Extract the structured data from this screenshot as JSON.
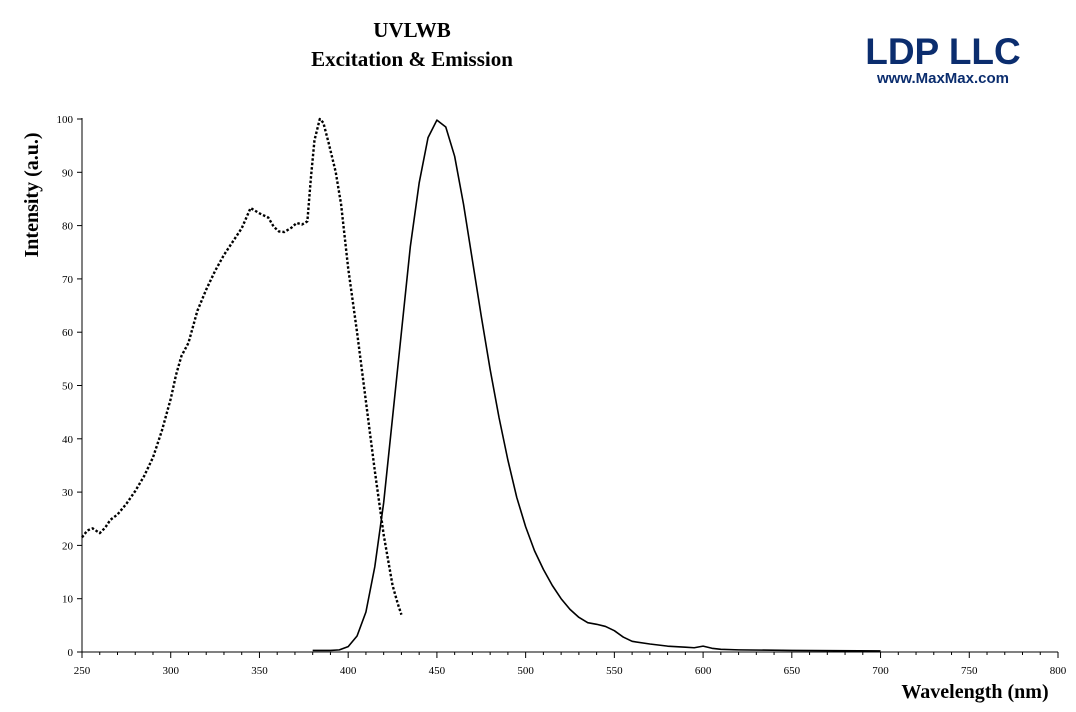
{
  "header": {
    "title": "UVLWB",
    "subtitle": "Excitation & Emission"
  },
  "logo": {
    "name": "LDP LLC",
    "url": "www.MaxMax.com",
    "color": "#0b2d6e"
  },
  "chart_data": {
    "type": "line",
    "title": "UVLWB",
    "subtitle": "Excitation & Emission",
    "xlabel": "Wavelength (nm)",
    "ylabel": "Intensity (a.u.)",
    "xlim": [
      250,
      800
    ],
    "ylim": [
      0,
      100
    ],
    "x_ticks": [
      250,
      300,
      350,
      400,
      450,
      500,
      550,
      600,
      650,
      700,
      750,
      800
    ],
    "y_ticks": [
      0,
      10,
      20,
      30,
      40,
      50,
      60,
      70,
      80,
      90,
      100
    ],
    "grid": false,
    "legend": "none",
    "series": [
      {
        "style": "dotted",
        "color": "#000000",
        "points": [
          [
            250,
            21.5
          ],
          [
            253,
            22.8
          ],
          [
            256,
            23.2
          ],
          [
            260,
            22.3
          ],
          [
            263,
            23.3
          ],
          [
            266,
            24.8
          ],
          [
            270,
            25.8
          ],
          [
            275,
            27.8
          ],
          [
            280,
            30.2
          ],
          [
            285,
            33.0
          ],
          [
            290,
            36.5
          ],
          [
            295,
            41.5
          ],
          [
            300,
            47.5
          ],
          [
            303,
            52.0
          ],
          [
            306,
            55.5
          ],
          [
            310,
            58.0
          ],
          [
            315,
            64.0
          ],
          [
            320,
            68.0
          ],
          [
            325,
            71.5
          ],
          [
            330,
            74.5
          ],
          [
            335,
            77.0
          ],
          [
            340,
            79.5
          ],
          [
            345,
            83.3
          ],
          [
            350,
            82.3
          ],
          [
            355,
            81.5
          ],
          [
            358,
            79.8
          ],
          [
            361,
            78.9
          ],
          [
            364,
            78.8
          ],
          [
            368,
            79.6
          ],
          [
            371,
            80.5
          ],
          [
            374,
            80.2
          ],
          [
            377,
            80.8
          ],
          [
            379,
            89.0
          ],
          [
            381,
            96.0
          ],
          [
            384,
            100.0
          ],
          [
            386,
            99.3
          ],
          [
            389,
            95.5
          ],
          [
            393,
            90.0
          ],
          [
            396,
            84.0
          ],
          [
            400,
            72.0
          ],
          [
            405,
            60.0
          ],
          [
            410,
            47.0
          ],
          [
            415,
            34.0
          ],
          [
            420,
            22.0
          ],
          [
            425,
            12.5
          ],
          [
            428,
            9.0
          ],
          [
            430,
            7.0
          ]
        ]
      },
      {
        "style": "solid",
        "color": "#000000",
        "points": [
          [
            380,
            0.3
          ],
          [
            390,
            0.3
          ],
          [
            395,
            0.4
          ],
          [
            400,
            1.0
          ],
          [
            405,
            3.0
          ],
          [
            410,
            7.5
          ],
          [
            415,
            16.0
          ],
          [
            420,
            28.0
          ],
          [
            425,
            44.0
          ],
          [
            430,
            60.0
          ],
          [
            435,
            76.0
          ],
          [
            440,
            88.0
          ],
          [
            445,
            96.5
          ],
          [
            450,
            99.8
          ],
          [
            455,
            98.5
          ],
          [
            460,
            93.0
          ],
          [
            465,
            84.0
          ],
          [
            470,
            73.5
          ],
          [
            475,
            63.0
          ],
          [
            480,
            53.0
          ],
          [
            485,
            44.0
          ],
          [
            490,
            36.0
          ],
          [
            495,
            29.0
          ],
          [
            500,
            23.5
          ],
          [
            505,
            19.0
          ],
          [
            510,
            15.5
          ],
          [
            515,
            12.5
          ],
          [
            520,
            10.0
          ],
          [
            525,
            8.0
          ],
          [
            530,
            6.5
          ],
          [
            535,
            5.5
          ],
          [
            540,
            5.2
          ],
          [
            545,
            4.8
          ],
          [
            550,
            4.0
          ],
          [
            555,
            2.8
          ],
          [
            560,
            2.0
          ],
          [
            570,
            1.5
          ],
          [
            580,
            1.1
          ],
          [
            590,
            0.9
          ],
          [
            595,
            0.8
          ],
          [
            600,
            1.1
          ],
          [
            605,
            0.7
          ],
          [
            610,
            0.5
          ],
          [
            620,
            0.4
          ],
          [
            650,
            0.3
          ],
          [
            700,
            0.2
          ]
        ]
      }
    ]
  }
}
